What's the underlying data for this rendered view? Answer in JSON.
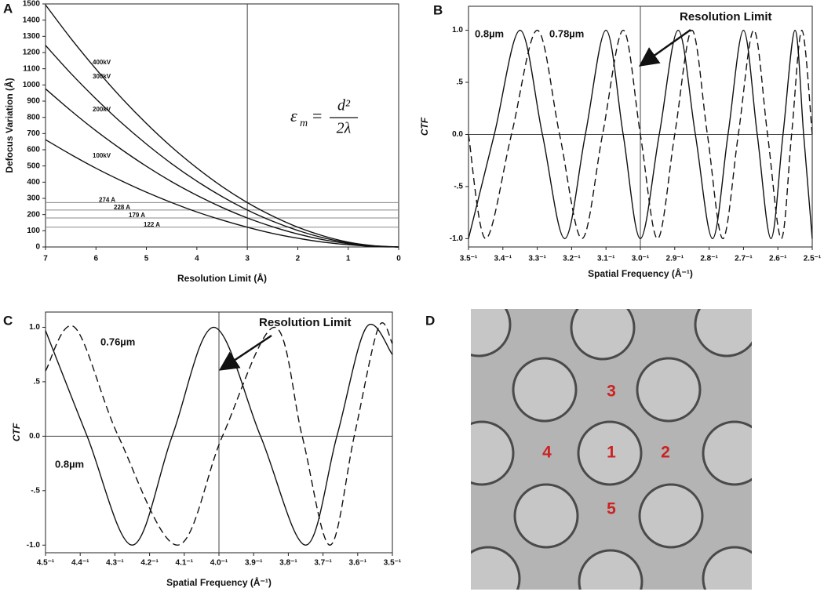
{
  "chart_data": [
    {
      "type": "line",
      "panel": "A",
      "x_label": "Resolution Limit (Å)",
      "y_label": "Defocus Variation (Å)",
      "x": [
        7,
        6.5,
        6,
        5.5,
        5,
        4.5,
        4,
        3.5,
        3,
        2.5,
        2,
        1.5,
        1,
        0.5,
        0
      ],
      "series": [
        {
          "name": "100kV",
          "color": "#111111",
          "line_style": "solid",
          "values": [
            662,
            571,
            486,
            409,
            338,
            274,
            216,
            166,
            122,
            84,
            54,
            30,
            14,
            3,
            0
          ]
        },
        {
          "name": "200kV",
          "color": "#111111",
          "line_style": "solid",
          "values": [
            976,
            842,
            717,
            603,
            498,
            403,
            319,
            244,
            179,
            125,
            80,
            45,
            20,
            5,
            0
          ]
        },
        {
          "name": "300kV",
          "color": "#111111",
          "line_style": "solid",
          "values": [
            1244,
            1072,
            914,
            768,
            635,
            514,
            406,
            311,
            228,
            159,
            102,
            57,
            25,
            6,
            0
          ]
        },
        {
          "name": "400kV",
          "color": "#111111",
          "line_style": "solid",
          "values": [
            1494,
            1288,
            1098,
            922,
            762,
            617,
            488,
            373,
            274,
            191,
            122,
            69,
            30,
            8,
            0
          ]
        }
      ],
      "xlim": [
        7,
        0
      ],
      "ylim": [
        0,
        1500
      ],
      "xticks": [
        7,
        6,
        5,
        4,
        3,
        2,
        1,
        0
      ],
      "yticks": [
        0,
        100,
        200,
        300,
        400,
        500,
        600,
        700,
        800,
        900,
        1000,
        1100,
        1200,
        1300,
        1400,
        1500
      ],
      "vline": 3,
      "smooth": true,
      "reference_lines": [
        {
          "value": 274,
          "label": "274 A"
        },
        {
          "value": 228,
          "label": "228 A"
        },
        {
          "value": 179,
          "label": "179 A"
        },
        {
          "value": 122,
          "label": "122 A"
        }
      ],
      "equation": {
        "lhs": "ε",
        "subscript": "m",
        "equals": "=",
        "numerator": "d²",
        "denominator": "2λ"
      }
    },
    {
      "type": "line",
      "panel": "B",
      "x_label": "Spatial Frequency (Å⁻¹)",
      "y_label": "CTF",
      "annotation": "Resolution Limit",
      "series": [
        {
          "name": "0.8µm",
          "color": "#111111",
          "line_style": "solid",
          "x": [
            3.5,
            3.425,
            3.35,
            3.285,
            3.22,
            3.16,
            3.1,
            3.05,
            3.0,
            2.945,
            2.89,
            2.84,
            2.79,
            2.745,
            2.7,
            2.66,
            2.62,
            2.585,
            2.55,
            2.525,
            2.5
          ],
          "values": [
            -1,
            0,
            1,
            0,
            -1,
            0,
            1,
            0,
            -1,
            0,
            1,
            0,
            -1,
            0,
            1,
            0,
            -1,
            0,
            1,
            0,
            -1
          ]
        },
        {
          "name": "0.78µm",
          "color": "#111111",
          "line_style": "dashed",
          "x": [
            3.5,
            3.45,
            3.375,
            3.3,
            3.235,
            3.17,
            3.11,
            3.05,
            3.0,
            2.95,
            2.9,
            2.85,
            2.805,
            2.76,
            2.715,
            2.67,
            2.63,
            2.59,
            2.56,
            2.53,
            2.5
          ],
          "values": [
            0,
            -1,
            0,
            1,
            0,
            -1,
            0,
            1,
            0,
            -1,
            0,
            1,
            0,
            -1,
            0,
            1,
            0,
            -1,
            0,
            1,
            0
          ]
        }
      ],
      "xlim": [
        3.5,
        2.5
      ],
      "ylim": [
        -1.08,
        1.23
      ],
      "xticks": [
        {
          "value": 3.5,
          "label": "3.5⁻¹"
        },
        {
          "value": 3.4,
          "label": "3.4⁻¹"
        },
        {
          "value": 3.3,
          "label": "3.3⁻¹"
        },
        {
          "value": 3.2,
          "label": "3.2⁻¹"
        },
        {
          "value": 3.1,
          "label": "3.1⁻¹"
        },
        {
          "value": 3.0,
          "label": "3.0⁻¹"
        },
        {
          "value": 2.9,
          "label": "2.9⁻¹"
        },
        {
          "value": 2.8,
          "label": "2.8⁻¹"
        },
        {
          "value": 2.7,
          "label": "2.7⁻¹"
        },
        {
          "value": 2.6,
          "label": "2.6⁻¹"
        },
        {
          "value": 2.5,
          "label": "2.5⁻¹"
        }
      ],
      "yticks": [
        {
          "value": -1,
          "label": "-1.0"
        },
        {
          "value": -0.5,
          "label": "-.5"
        },
        {
          "value": 0,
          "label": "0.0"
        },
        {
          "value": 0.5,
          "label": ".5"
        },
        {
          "value": 1,
          "label": "1.0"
        }
      ],
      "vline": 3.0,
      "hline": 0,
      "smooth": true
    },
    {
      "type": "line",
      "panel": "C",
      "x_label": "Spatial Frequency (Å⁻¹)",
      "y_label": "CTF",
      "annotation": "Resolution Limit",
      "series": [
        {
          "name": "0.8µm",
          "color": "#111111",
          "line_style": "solid",
          "x": [
            4.5,
            4.38,
            4.25,
            4.135,
            4.015,
            3.88,
            3.75,
            3.66,
            3.575,
            3.5
          ],
          "values": [
            0.97,
            0,
            -1,
            0,
            1,
            0,
            -1,
            0,
            1,
            0.75
          ]
        },
        {
          "name": "0.76µm",
          "color": "#111111",
          "line_style": "dashed",
          "x": [
            4.5,
            4.416,
            4.29,
            4.12,
            3.99,
            3.84,
            3.76,
            3.68,
            3.61,
            3.54,
            3.5
          ],
          "values": [
            0.6,
            1,
            0,
            -1,
            0,
            1,
            0,
            -1,
            0,
            1,
            0.85
          ]
        }
      ],
      "xlim": [
        4.5,
        3.5
      ],
      "ylim": [
        -1.07,
        1.14
      ],
      "xticks": [
        {
          "value": 4.5,
          "label": "4.5⁻¹"
        },
        {
          "value": 4.4,
          "label": "4.4⁻¹"
        },
        {
          "value": 4.3,
          "label": "4.3⁻¹"
        },
        {
          "value": 4.2,
          "label": "4.2⁻¹"
        },
        {
          "value": 4.1,
          "label": "4.1⁻¹"
        },
        {
          "value": 4.0,
          "label": "4.0⁻¹"
        },
        {
          "value": 3.9,
          "label": "3.9⁻¹"
        },
        {
          "value": 3.8,
          "label": "3.8⁻¹"
        },
        {
          "value": 3.7,
          "label": "3.7⁻¹"
        },
        {
          "value": 3.6,
          "label": "3.6⁻¹"
        },
        {
          "value": 3.5,
          "label": "3.5⁻¹"
        }
      ],
      "yticks": [
        {
          "value": -1,
          "label": "-1.0"
        },
        {
          "value": -0.5,
          "label": "-.5"
        },
        {
          "value": 0,
          "label": "0.0"
        },
        {
          "value": 0.5,
          "label": ".5"
        },
        {
          "value": 1,
          "label": "1.0"
        }
      ],
      "vline": 4.0,
      "hline": 0,
      "smooth": true
    }
  ],
  "image_panel": {
    "panel": "D",
    "labels": [
      "1",
      "2",
      "3",
      "4",
      "5"
    ]
  }
}
